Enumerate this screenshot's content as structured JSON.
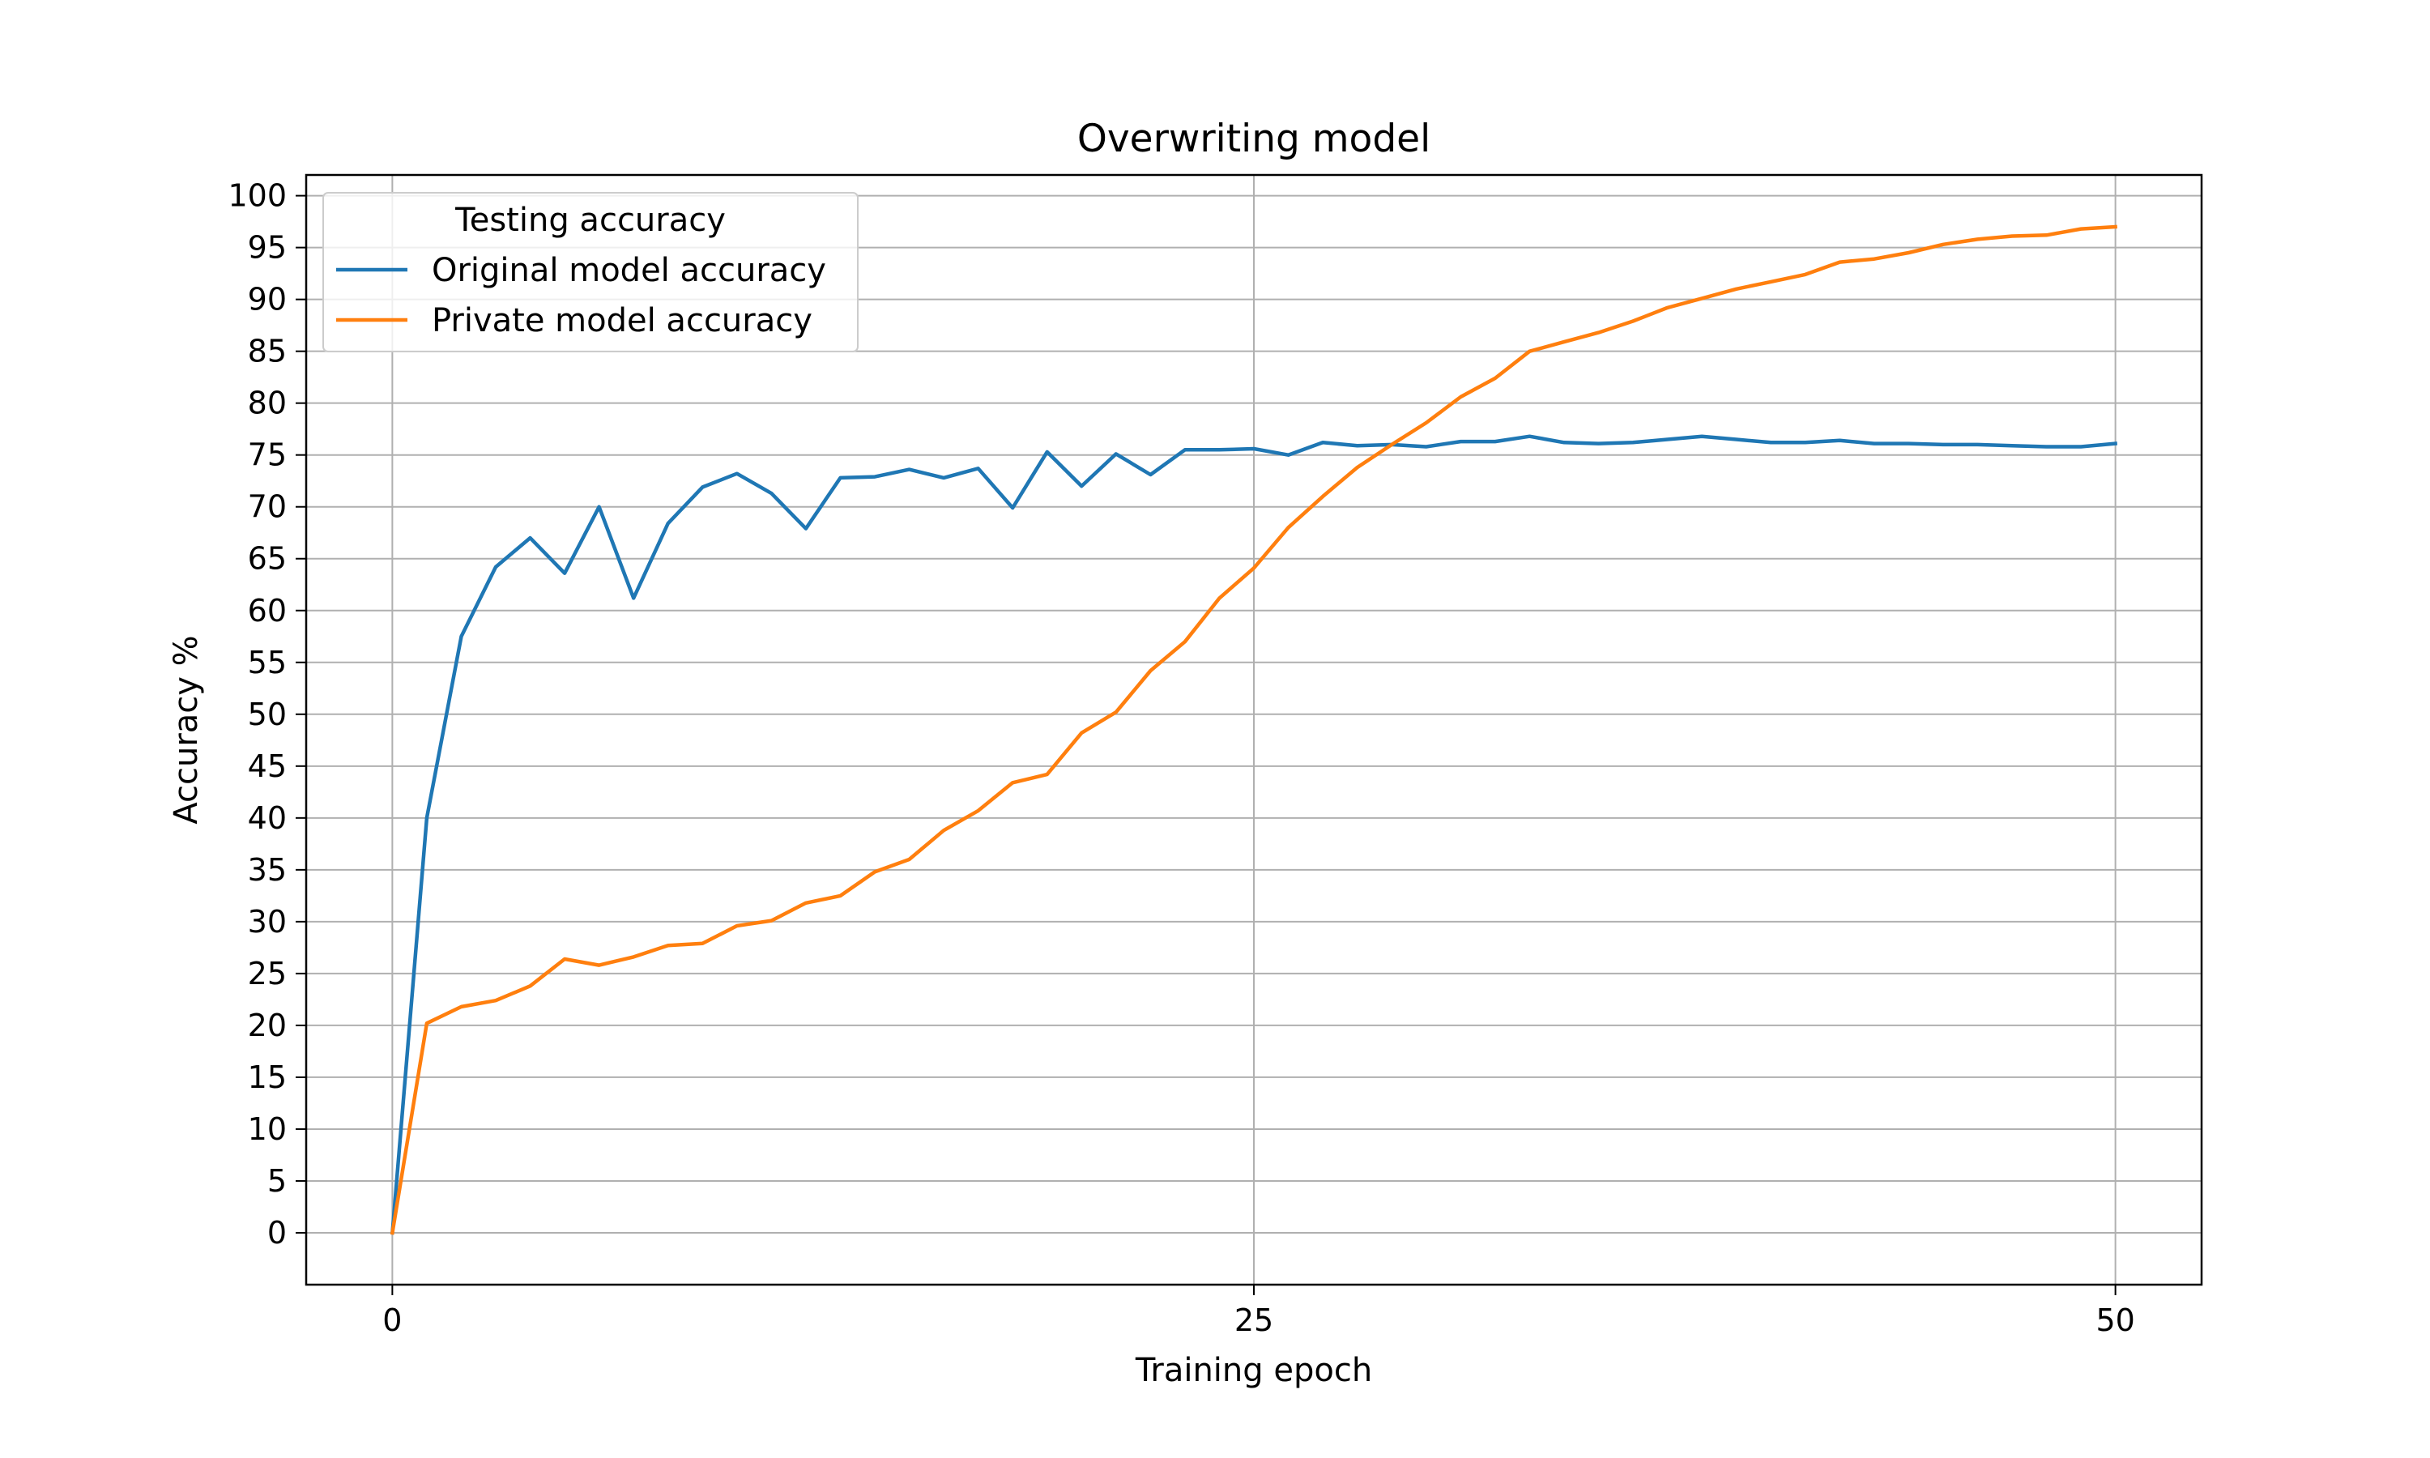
{
  "chart_data": {
    "type": "line",
    "title": "Overwriting model",
    "xlabel": "Training epoch",
    "ylabel": "Accuracy %",
    "xlim": [
      -2.5,
      52.5
    ],
    "ylim": [
      -5,
      102
    ],
    "xticks": [
      0,
      25,
      50
    ],
    "yticks": [
      0,
      5,
      10,
      15,
      20,
      25,
      30,
      35,
      40,
      45,
      50,
      55,
      60,
      65,
      70,
      75,
      80,
      85,
      90,
      95,
      100
    ],
    "grid": true,
    "legend": {
      "title": "Testing accuracy",
      "placement": "upper-left"
    },
    "x": [
      0,
      1,
      2,
      3,
      4,
      5,
      6,
      7,
      8,
      9,
      10,
      11,
      12,
      13,
      14,
      15,
      16,
      17,
      18,
      19,
      20,
      21,
      22,
      23,
      24,
      25,
      26,
      27,
      28,
      29,
      30,
      31,
      32,
      33,
      34,
      35,
      36,
      37,
      38,
      39,
      40,
      41,
      42,
      43,
      44,
      45,
      46,
      47,
      48,
      49,
      50
    ],
    "series": [
      {
        "name": "Original model accuracy",
        "color": "#1f77b4",
        "values": [
          0,
          40,
          57.5,
          64.2,
          67,
          63.6,
          70,
          61.2,
          68.4,
          71.9,
          73.2,
          71.3,
          67.9,
          72.8,
          72.9,
          73.6,
          72.8,
          73.7,
          69.9,
          75.3,
          72,
          75.1,
          73.1,
          75.5,
          75.5,
          75.6,
          75,
          76.2,
          75.9,
          76,
          75.8,
          76.3,
          76.3,
          76.8,
          76.2,
          76.1,
          76.2,
          76.5,
          76.8,
          76.5,
          76.2,
          76.2,
          76.4,
          76.1,
          76.1,
          76,
          76,
          75.9,
          75.8,
          75.8,
          76.1
        ]
      },
      {
        "name": "Private model accuracy",
        "color": "#ff7f0e",
        "values": [
          0,
          20.2,
          21.8,
          22.4,
          23.8,
          26.4,
          25.8,
          26.6,
          27.7,
          27.9,
          29.6,
          30.1,
          31.8,
          32.5,
          34.8,
          36,
          38.8,
          40.7,
          43.4,
          44.2,
          48.2,
          50.2,
          54.2,
          57,
          61.2,
          64.1,
          68,
          71,
          73.8,
          76,
          78.1,
          80.6,
          82.4,
          85,
          85.9,
          86.8,
          87.9,
          89.2,
          90.1,
          91,
          91.7,
          92.4,
          93.6,
          93.9,
          94.5,
          95.3,
          95.8,
          96.1,
          96.2,
          96.8,
          97
        ]
      }
    ]
  }
}
